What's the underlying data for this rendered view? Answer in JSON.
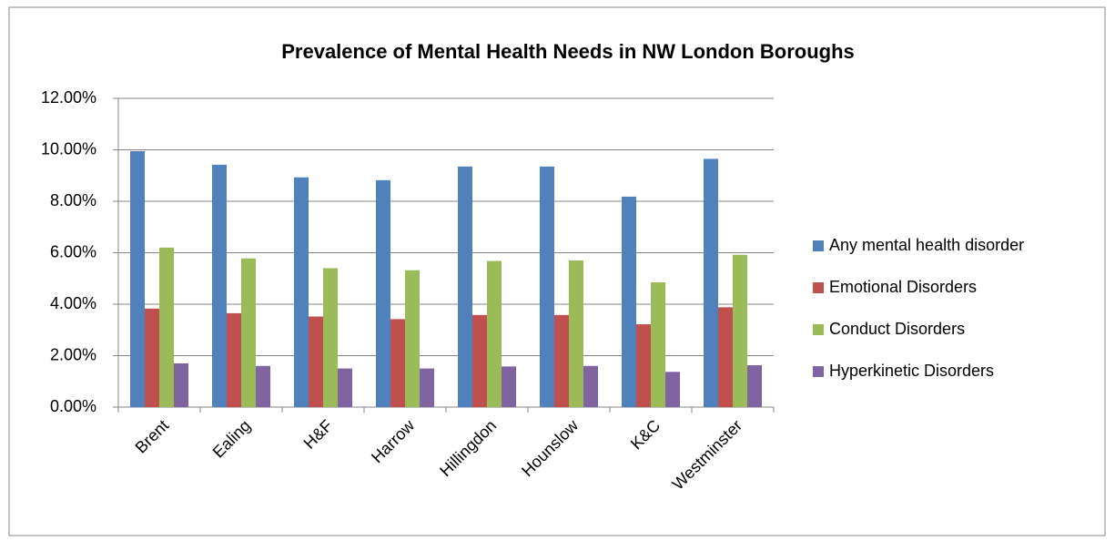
{
  "chart_data": {
    "type": "bar",
    "title": "Prevalence of Mental Health Needs in NW London Boroughs",
    "categories": [
      "Brent",
      "Ealing",
      "H&F",
      "Harrow",
      "Hillingdon",
      "Hounslow",
      "K&C",
      "Westminster"
    ],
    "series": [
      {
        "name": "Any mental health disorder",
        "color": "#4f81bd",
        "values": [
          9.95,
          9.42,
          8.93,
          8.82,
          9.35,
          9.35,
          8.18,
          9.65
        ]
      },
      {
        "name": "Emotional Disorders",
        "color": "#c0504d",
        "values": [
          3.83,
          3.65,
          3.52,
          3.42,
          3.58,
          3.58,
          3.22,
          3.88
        ]
      },
      {
        "name": "Conduct Disorders",
        "color": "#9bbb59",
        "values": [
          6.2,
          5.78,
          5.4,
          5.32,
          5.68,
          5.7,
          4.85,
          5.92
        ]
      },
      {
        "name": "Hyperkinetic Disorders",
        "color": "#8064a2",
        "values": [
          1.7,
          1.6,
          1.5,
          1.5,
          1.58,
          1.6,
          1.37,
          1.63
        ]
      }
    ],
    "ylim": [
      0,
      12
    ],
    "yticks": [
      {
        "value": 0,
        "label": "0.00%"
      },
      {
        "value": 2,
        "label": "2.00%"
      },
      {
        "value": 4,
        "label": "4.00%"
      },
      {
        "value": 6,
        "label": "6.00%"
      },
      {
        "value": 8,
        "label": "8.00%"
      },
      {
        "value": 10,
        "label": "10.00%"
      },
      {
        "value": 12,
        "label": "12.00%"
      }
    ],
    "grid": true,
    "legend": "right"
  }
}
